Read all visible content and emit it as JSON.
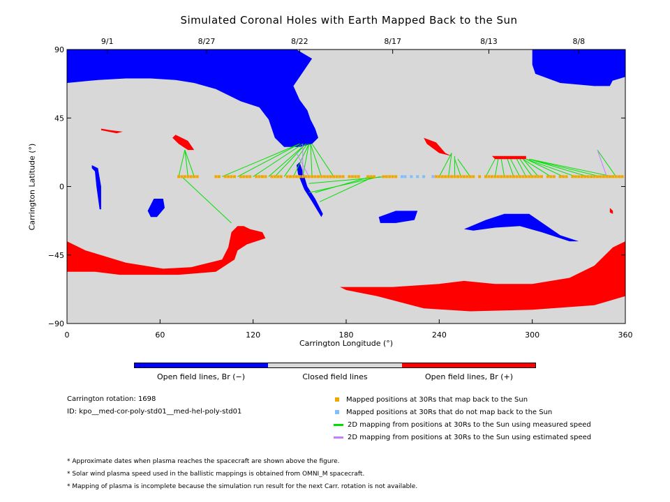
{
  "chart_data": {
    "type": "map",
    "title": "Simulated Coronal Holes with Earth Mapped Back to the Sun",
    "xlabel": "Carrington Longitude (°)",
    "ylabel": "Carrington Latitude (°)",
    "xlim": [
      0,
      360
    ],
    "ylim": [
      -90,
      90
    ],
    "x_ticks": [
      "0",
      "60",
      "120",
      "180",
      "240",
      "300",
      "360"
    ],
    "y_ticks": [
      "90",
      "45",
      "0",
      "−45",
      "−90"
    ],
    "top_date_labels": [
      {
        "lon": 26,
        "label": "9/1"
      },
      {
        "lon": 90,
        "label": "8/27"
      },
      {
        "lon": 150,
        "label": "8/22"
      },
      {
        "lon": 210,
        "label": "8/17"
      },
      {
        "lon": 272,
        "label": "8/13"
      },
      {
        "lon": 330,
        "label": "8/8"
      }
    ],
    "colors": {
      "open_negative": "#0000ff",
      "closed": "#d8d8d8",
      "open_positive": "#ff0000",
      "mapped": "#f0a800",
      "unmapped": "#7fbfff",
      "measured": "#00e000",
      "estimated": "#c080ff"
    },
    "coronal_holes": [
      {
        "polarity": "negative",
        "points": [
          [
            0,
            90
          ],
          [
            72,
            90
          ],
          [
            148,
            90
          ],
          [
            158,
            84
          ],
          [
            152,
            75
          ],
          [
            146,
            66
          ],
          [
            150,
            57
          ],
          [
            155,
            50
          ],
          [
            157,
            44
          ],
          [
            160,
            38
          ],
          [
            162,
            32
          ],
          [
            158,
            28
          ],
          [
            150,
            26
          ],
          [
            140,
            26
          ],
          [
            134,
            32
          ],
          [
            130,
            44
          ],
          [
            124,
            52
          ],
          [
            112,
            56
          ],
          [
            96,
            64
          ],
          [
            82,
            68
          ],
          [
            70,
            70
          ],
          [
            54,
            71
          ],
          [
            38,
            71
          ],
          [
            20,
            70
          ],
          [
            0,
            68
          ]
        ]
      },
      {
        "polarity": "negative",
        "points": [
          [
            300,
            90
          ],
          [
            360,
            90
          ],
          [
            360,
            72
          ],
          [
            340,
            66
          ],
          [
            318,
            68
          ],
          [
            302,
            74
          ],
          [
            300,
            80
          ]
        ]
      },
      {
        "polarity": "negative",
        "points": [
          [
            150,
            16
          ],
          [
            152,
            10
          ],
          [
            155,
            0
          ],
          [
            160,
            -8
          ],
          [
            165,
            -18
          ],
          [
            164,
            -20
          ],
          [
            158,
            -10
          ],
          [
            153,
            -2
          ],
          [
            149,
            8
          ],
          [
            148,
            14
          ]
        ]
      },
      {
        "polarity": "negative",
        "points": [
          [
            16,
            14
          ],
          [
            20,
            12
          ],
          [
            22,
            0
          ],
          [
            22,
            -15
          ],
          [
            21,
            -15
          ],
          [
            19,
            0
          ],
          [
            18,
            10
          ],
          [
            16,
            12
          ]
        ]
      },
      {
        "polarity": "negative",
        "points": [
          [
            52,
            -16
          ],
          [
            56,
            -8
          ],
          [
            62,
            -8
          ],
          [
            63,
            -14
          ],
          [
            58,
            -20
          ],
          [
            54,
            -20
          ]
        ]
      },
      {
        "polarity": "negative",
        "points": [
          [
            201,
            -20
          ],
          [
            212,
            -16
          ],
          [
            220,
            -16
          ],
          [
            226,
            -16
          ],
          [
            224,
            -22
          ],
          [
            212,
            -24
          ],
          [
            202,
            -24
          ]
        ]
      },
      {
        "polarity": "negative",
        "points": [
          [
            256,
            -28
          ],
          [
            270,
            -22
          ],
          [
            282,
            -18
          ],
          [
            298,
            -18
          ],
          [
            318,
            -32
          ],
          [
            330,
            -36
          ],
          [
            324,
            -36
          ],
          [
            306,
            -30
          ],
          [
            292,
            -26
          ],
          [
            276,
            -27
          ],
          [
            262,
            -29
          ]
        ]
      },
      {
        "polarity": "negative",
        "points": [
          [
            340,
            66
          ],
          [
            350,
            66
          ],
          [
            352,
            70
          ],
          [
            348,
            72
          ],
          [
            342,
            70
          ]
        ]
      },
      {
        "polarity": "positive",
        "points": [
          [
            0,
            -36
          ],
          [
            12,
            -42
          ],
          [
            38,
            -50
          ],
          [
            62,
            -54
          ],
          [
            80,
            -53
          ],
          [
            100,
            -48
          ],
          [
            104,
            -40
          ],
          [
            106,
            -30
          ],
          [
            110,
            -26
          ],
          [
            114,
            -26
          ],
          [
            118,
            -28
          ],
          [
            126,
            -30
          ],
          [
            128,
            -34
          ],
          [
            116,
            -38
          ],
          [
            110,
            -42
          ],
          [
            108,
            -48
          ],
          [
            96,
            -56
          ],
          [
            72,
            -58
          ],
          [
            52,
            -58
          ],
          [
            34,
            -58
          ],
          [
            18,
            -56
          ],
          [
            0,
            -56
          ]
        ]
      },
      {
        "polarity": "positive",
        "points": [
          [
            176,
            -66
          ],
          [
            210,
            -66
          ],
          [
            240,
            -64
          ],
          [
            256,
            -62
          ],
          [
            276,
            -64
          ],
          [
            300,
            -64
          ],
          [
            324,
            -60
          ],
          [
            340,
            -52
          ],
          [
            352,
            -40
          ],
          [
            360,
            -36
          ],
          [
            360,
            -72
          ],
          [
            340,
            -78
          ],
          [
            300,
            -81
          ],
          [
            260,
            -82
          ],
          [
            230,
            -80
          ],
          [
            200,
            -72
          ],
          [
            180,
            -68
          ]
        ]
      },
      {
        "polarity": "positive",
        "points": [
          [
            70,
            34
          ],
          [
            78,
            30
          ],
          [
            82,
            24
          ],
          [
            78,
            24
          ],
          [
            72,
            28
          ],
          [
            68,
            32
          ]
        ]
      },
      {
        "polarity": "positive",
        "points": [
          [
            22,
            38
          ],
          [
            28,
            37
          ],
          [
            36,
            36
          ],
          [
            32,
            35
          ],
          [
            22,
            37
          ]
        ]
      },
      {
        "polarity": "positive",
        "points": [
          [
            230,
            32
          ],
          [
            238,
            29
          ],
          [
            244,
            22
          ],
          [
            248,
            20
          ],
          [
            240,
            22
          ],
          [
            232,
            28
          ]
        ]
      },
      {
        "polarity": "positive",
        "points": [
          [
            274,
            20
          ],
          [
            296,
            20
          ],
          [
            296,
            18
          ],
          [
            276,
            18
          ]
        ]
      },
      {
        "polarity": "positive",
        "points": [
          [
            350,
            -14
          ],
          [
            352,
            -16
          ],
          [
            352,
            -18
          ],
          [
            350,
            -17
          ]
        ]
      }
    ],
    "mapped_points": [
      72,
      74,
      76,
      78,
      80,
      82,
      84,
      96,
      98,
      102,
      104,
      106,
      108,
      112,
      114,
      116,
      118,
      122,
      124,
      126,
      128,
      132,
      134,
      136,
      138,
      142,
      144,
      146,
      148,
      150,
      152,
      154,
      156,
      158,
      160,
      162,
      164,
      166,
      168,
      170,
      172,
      174,
      176,
      178,
      182,
      184,
      186,
      188,
      194,
      196,
      198,
      204,
      206,
      208,
      210,
      212,
      238,
      240,
      242,
      244,
      246,
      248,
      250,
      252,
      254,
      256,
      258,
      260,
      262,
      266,
      270,
      272,
      274,
      276,
      278,
      280,
      282,
      284,
      286,
      288,
      290,
      292,
      294,
      296,
      298,
      300,
      302,
      304,
      306,
      310,
      312,
      314,
      318,
      320,
      322,
      326,
      328,
      330,
      332,
      334,
      336,
      338,
      340,
      342,
      344,
      346,
      348,
      350,
      352,
      354,
      356,
      358
    ],
    "mapped_lat": 6.5,
    "unmapped_points": [
      216,
      218,
      222,
      226,
      230,
      236
    ],
    "measured_lines": [
      [
        72,
        6.5,
        76,
        24
      ],
      [
        78,
        6.5,
        76,
        24
      ],
      [
        82,
        6.5,
        76,
        24
      ],
      [
        74,
        6.5,
        106,
        -24
      ],
      [
        100,
        6.5,
        150,
        28
      ],
      [
        110,
        6.5,
        150,
        28
      ],
      [
        120,
        6.5,
        152,
        28
      ],
      [
        130,
        6.5,
        154,
        28
      ],
      [
        134,
        6.5,
        154,
        28
      ],
      [
        140,
        6.5,
        155,
        28
      ],
      [
        146,
        6.5,
        156,
        28
      ],
      [
        152,
        6.5,
        156,
        28
      ],
      [
        158,
        6.5,
        157,
        28
      ],
      [
        164,
        6.5,
        157,
        28
      ],
      [
        172,
        6.5,
        158,
        28
      ],
      [
        156,
        2,
        206,
        6.5
      ],
      [
        156,
        -4,
        202,
        6.5
      ],
      [
        163,
        -10,
        198,
        6.5
      ],
      [
        160,
        -4,
        196,
        6.5
      ],
      [
        240,
        6.5,
        248,
        22
      ],
      [
        246,
        6.5,
        248,
        22
      ],
      [
        250,
        6.5,
        250,
        20
      ],
      [
        254,
        6.5,
        250,
        18
      ],
      [
        260,
        6.5,
        252,
        18
      ],
      [
        270,
        6.5,
        276,
        18
      ],
      [
        276,
        6.5,
        278,
        18
      ],
      [
        282,
        6.5,
        280,
        18
      ],
      [
        288,
        6.5,
        284,
        18
      ],
      [
        292,
        6.5,
        286,
        18
      ],
      [
        296,
        6.5,
        290,
        18
      ],
      [
        300,
        6.5,
        292,
        18
      ],
      [
        304,
        6.5,
        294,
        18
      ],
      [
        312,
        6.5,
        294,
        18
      ],
      [
        320,
        6.5,
        296,
        18
      ],
      [
        328,
        6.5,
        296,
        18
      ],
      [
        336,
        6.5,
        298,
        18
      ],
      [
        344,
        6.5,
        298,
        18
      ],
      [
        352,
        6.5,
        298,
        18
      ],
      [
        354,
        6.5,
        342,
        24
      ]
    ],
    "estimated_lines": [
      [
        152,
        6.5,
        152,
        28
      ],
      [
        156,
        6.5,
        148,
        22
      ],
      [
        348,
        6.5,
        342,
        24
      ]
    ],
    "colorbar": [
      {
        "label": "Open field lines, Br (−)",
        "color": "#0000ff"
      },
      {
        "label": "Closed field lines",
        "color": "#d8d8d8"
      },
      {
        "label": "Open field lines, Br (+)",
        "color": "#ff0000"
      }
    ]
  },
  "info": {
    "rotation": "Carrington rotation: 1698",
    "id": "ID: kpo__med-cor-poly-std01__med-hel-poly-std01"
  },
  "legend": {
    "mapped": "Mapped positions at 30Rs that map back to the Sun",
    "unmapped": "Mapped positions at 30Rs that do not map back to the Sun",
    "measured": "2D mapping from positions at 30Rs to the Sun using measured speed",
    "estimated": "2D mapping from positions at 30Rs to the Sun using estimated speed"
  },
  "notes": [
    "* Approximate dates when plasma reaches the spacecraft are shown above the figure.",
    "* Solar wind plasma speed used in the ballistic mappings is obtained from OMNI_M spacecraft.",
    "* Mapping of plasma is incomplete because the simulation run result for the next Carr. rotation is not available."
  ]
}
